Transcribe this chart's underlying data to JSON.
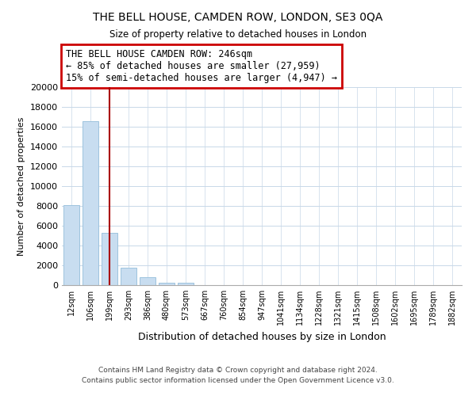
{
  "title": "THE BELL HOUSE, CAMDEN ROW, LONDON, SE3 0QA",
  "subtitle": "Size of property relative to detached houses in London",
  "xlabel": "Distribution of detached houses by size in London",
  "ylabel": "Number of detached properties",
  "categories": [
    "12sqm",
    "106sqm",
    "199sqm",
    "293sqm",
    "386sqm",
    "480sqm",
    "573sqm",
    "667sqm",
    "760sqm",
    "854sqm",
    "947sqm",
    "1041sqm",
    "1134sqm",
    "1228sqm",
    "1321sqm",
    "1415sqm",
    "1508sqm",
    "1602sqm",
    "1695sqm",
    "1789sqm",
    "1882sqm"
  ],
  "bar_values": [
    8100,
    16600,
    5300,
    1750,
    800,
    280,
    220,
    0,
    0,
    0,
    0,
    0,
    0,
    0,
    0,
    0,
    0,
    0,
    0,
    0,
    0
  ],
  "bar_color": "#c8ddf0",
  "bar_edge_color": "#9dc3de",
  "vline_x": 2.0,
  "vline_color": "#aa0000",
  "annotation_title": "THE BELL HOUSE CAMDEN ROW: 246sqm",
  "annotation_line1": "← 85% of detached houses are smaller (27,959)",
  "annotation_line2": "15% of semi-detached houses are larger (4,947) →",
  "annotation_box_color": "#ffffff",
  "annotation_box_edge": "#cc0000",
  "ylim": [
    0,
    20000
  ],
  "yticks": [
    0,
    2000,
    4000,
    6000,
    8000,
    10000,
    12000,
    14000,
    16000,
    18000,
    20000
  ],
  "footer_line1": "Contains HM Land Registry data © Crown copyright and database right 2024.",
  "footer_line2": "Contains public sector information licensed under the Open Government Licence v3.0.",
  "bg_color": "#ffffff",
  "grid_color": "#c8d8e8"
}
